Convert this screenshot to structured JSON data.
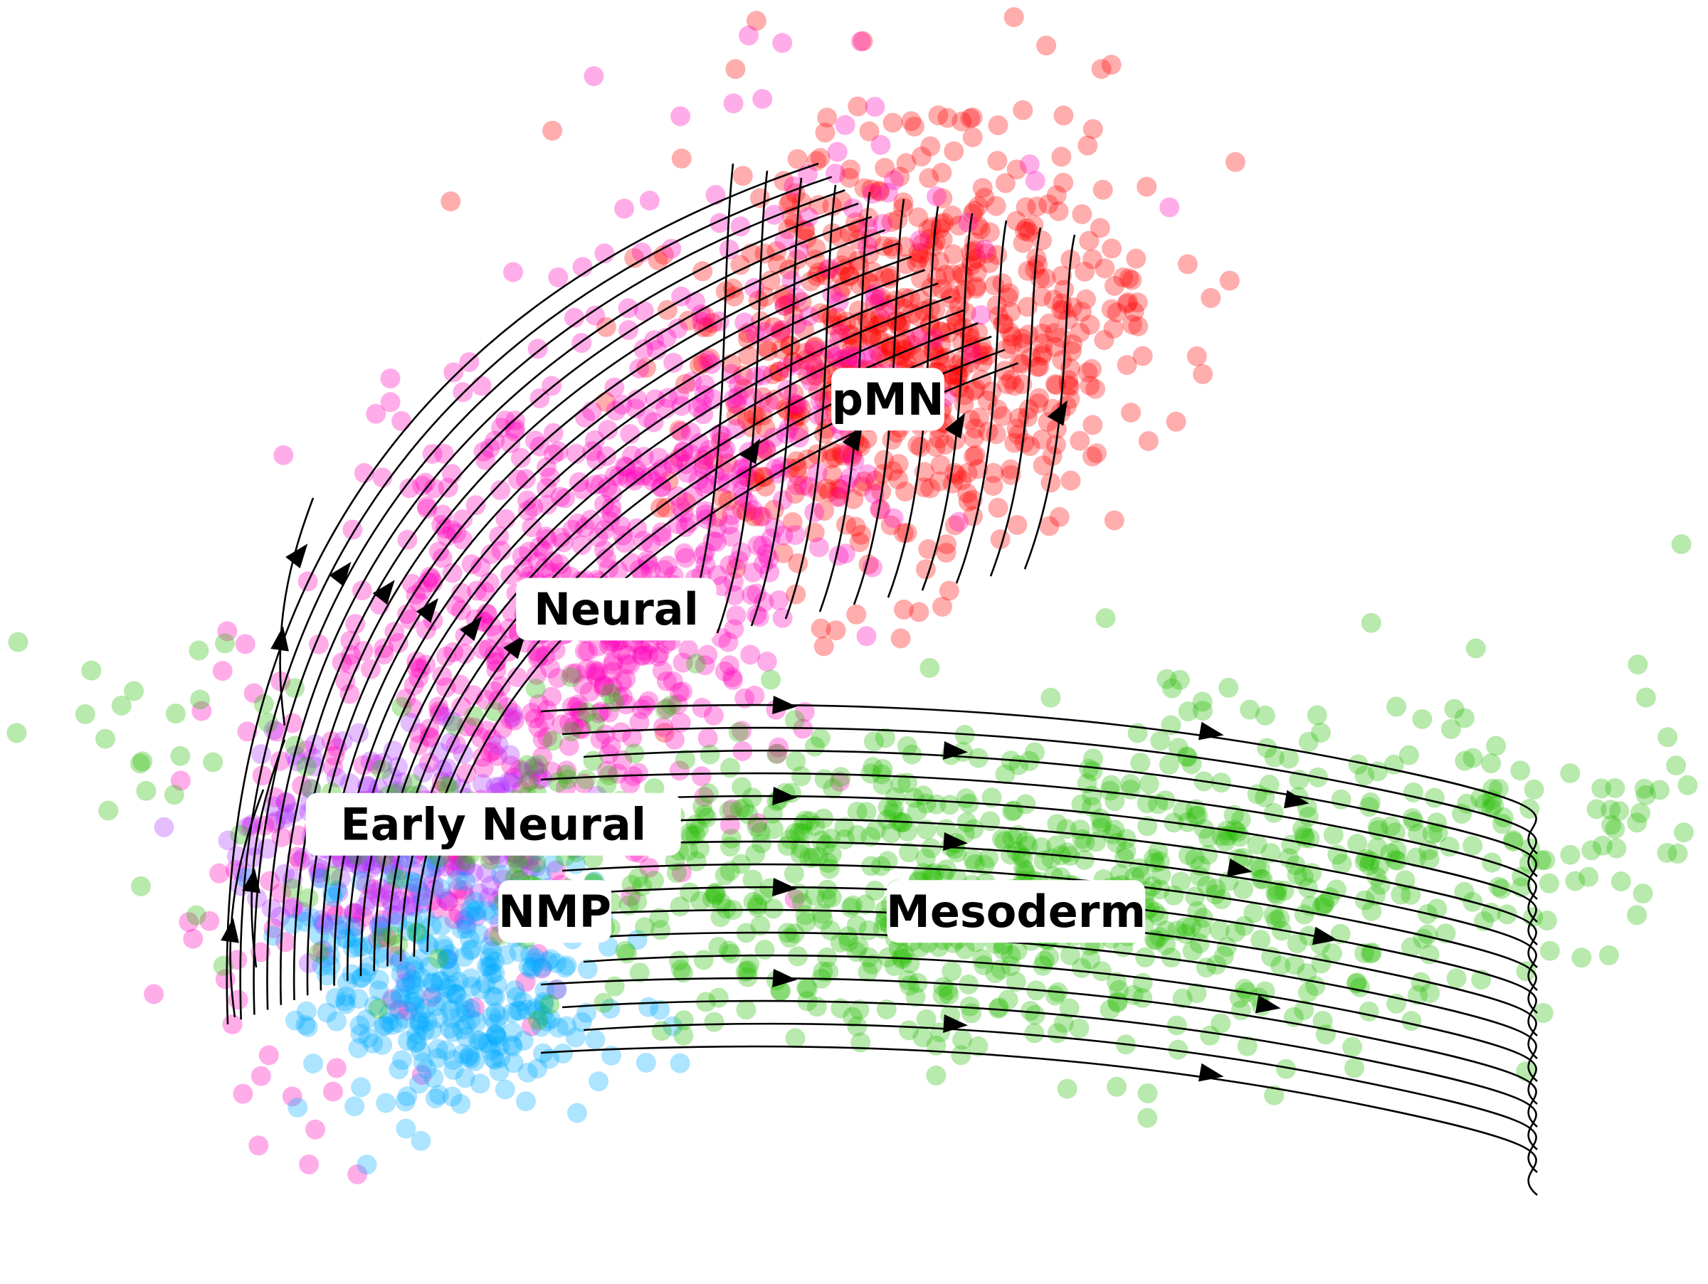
{
  "chart_data": {
    "type": "scatter",
    "subtype": "embedding with velocity streamlines",
    "title": "",
    "xlabel": "",
    "ylabel": "",
    "axes_visible": false,
    "grid": false,
    "legend": "on-data labels",
    "clusters": [
      {
        "name": "pMN",
        "color": "#ff0000",
        "label_pos": [
          0.33,
          0.79
        ]
      },
      {
        "name": "Neural",
        "color": "#ff00bb",
        "label_pos": [
          -0.2,
          0.38
        ]
      },
      {
        "name": "Early Neural",
        "color": "#aa33ff",
        "label_pos": [
          -0.44,
          -0.04
        ]
      },
      {
        "name": "NMP",
        "color": "#00aaff",
        "label_pos": [
          -0.32,
          -0.21
        ]
      },
      {
        "name": "Mesoderm",
        "color": "#22bb00",
        "label_pos": [
          0.58,
          -0.21
        ]
      }
    ],
    "streamline_color": "#000000"
  }
}
